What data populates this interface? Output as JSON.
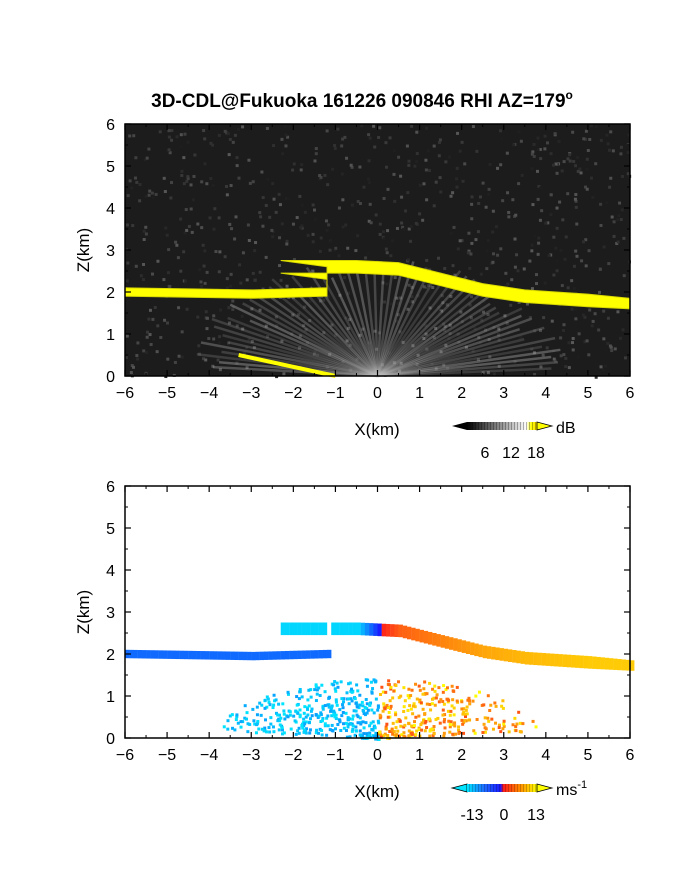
{
  "title": "3D-CDL@Fukuoka 161226 090846 RHI AZ=179",
  "title_superscript": "o",
  "colors": {
    "background_dark": "#1c1c1c",
    "cloud_layer": "#ffff00",
    "frame": "#000000"
  },
  "chart_data": [
    {
      "type": "heatmap",
      "quantity": "reflectivity (dB)",
      "xlabel": "X(km)",
      "ylabel": "Z(km)",
      "xlim": [
        -6,
        6
      ],
      "ylim": [
        0,
        6
      ],
      "xticks": [
        "-6",
        "-5",
        "-4",
        "-3",
        "-2",
        "-1",
        "0",
        "1",
        "2",
        "3",
        "4",
        "5",
        "6"
      ],
      "yticks": [
        "0",
        "1",
        "2",
        "3",
        "4",
        "5",
        "6"
      ],
      "colorbar": {
        "unit": "dB",
        "tick_labels": [
          "6",
          "12",
          "18"
        ],
        "range": [
          0,
          20
        ]
      },
      "layer_top_km": {
        "x": [
          -6,
          -3,
          -1.2,
          -1.2,
          -2.3,
          -0.5,
          0.5,
          1.5,
          2.5,
          3.5,
          5,
          6
        ],
        "y": [
          2.1,
          2.05,
          2.1,
          2.6,
          2.75,
          2.75,
          2.7,
          2.45,
          2.2,
          2.05,
          1.95,
          1.85
        ]
      },
      "layer_bottom_km": {
        "x": [
          -6,
          -3,
          -1.2,
          -1.2,
          -2.3,
          -0.5,
          0.5,
          1.5,
          2.5,
          3.5,
          5,
          6
        ],
        "y": [
          1.9,
          1.85,
          1.9,
          2.3,
          2.45,
          2.45,
          2.4,
          2.15,
          1.9,
          1.75,
          1.65,
          1.6
        ]
      },
      "ground_echo": {
        "x": [
          -3.3,
          -1.0
        ],
        "y": [
          0.5,
          0.0
        ]
      }
    },
    {
      "type": "heatmap",
      "quantity": "Doppler velocity (m/s)",
      "xlabel": "X(km)",
      "ylabel": "Z(km)",
      "xlim": [
        -6,
        6
      ],
      "ylim": [
        0,
        6
      ],
      "xticks": [
        "-6",
        "-5",
        "-4",
        "-3",
        "-2",
        "-1",
        "0",
        "1",
        "2",
        "3",
        "4",
        "5",
        "6"
      ],
      "yticks": [
        "0",
        "1",
        "2",
        "3",
        "4",
        "5",
        "6"
      ],
      "colorbar": {
        "unit": "ms",
        "unit_superscript": "-1",
        "tick_labels": [
          "-13",
          "0",
          "13"
        ],
        "range": [
          -13,
          13
        ]
      },
      "layer_velocity_ms": {
        "x": [
          -6,
          -3,
          -1.2,
          -2.3,
          -0.5,
          0,
          0.5,
          1.5,
          2.5,
          3.5,
          5,
          6
        ],
        "v": [
          -8,
          -8,
          -8,
          -12,
          -12,
          0,
          4,
          6,
          8,
          9,
          10,
          10
        ]
      }
    }
  ]
}
